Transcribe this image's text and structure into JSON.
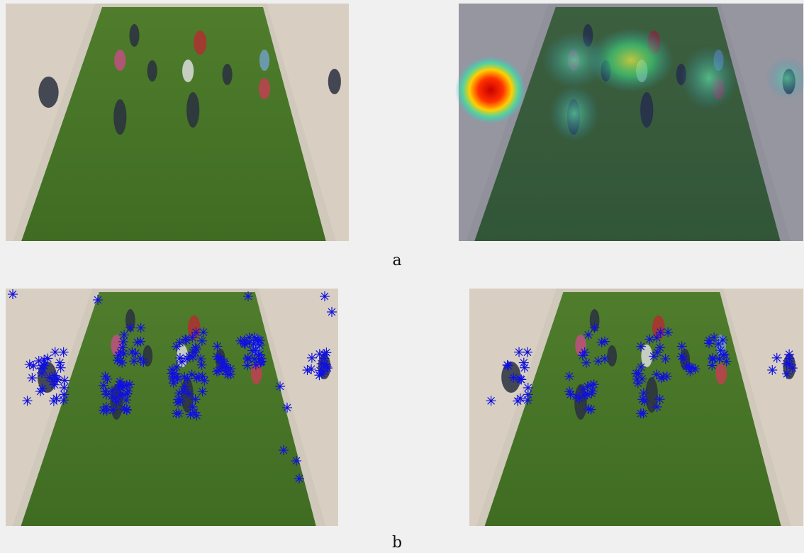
{
  "figure": {
    "panels": [
      {
        "label": "a"
      },
      {
        "label": "b"
      }
    ]
  }
}
